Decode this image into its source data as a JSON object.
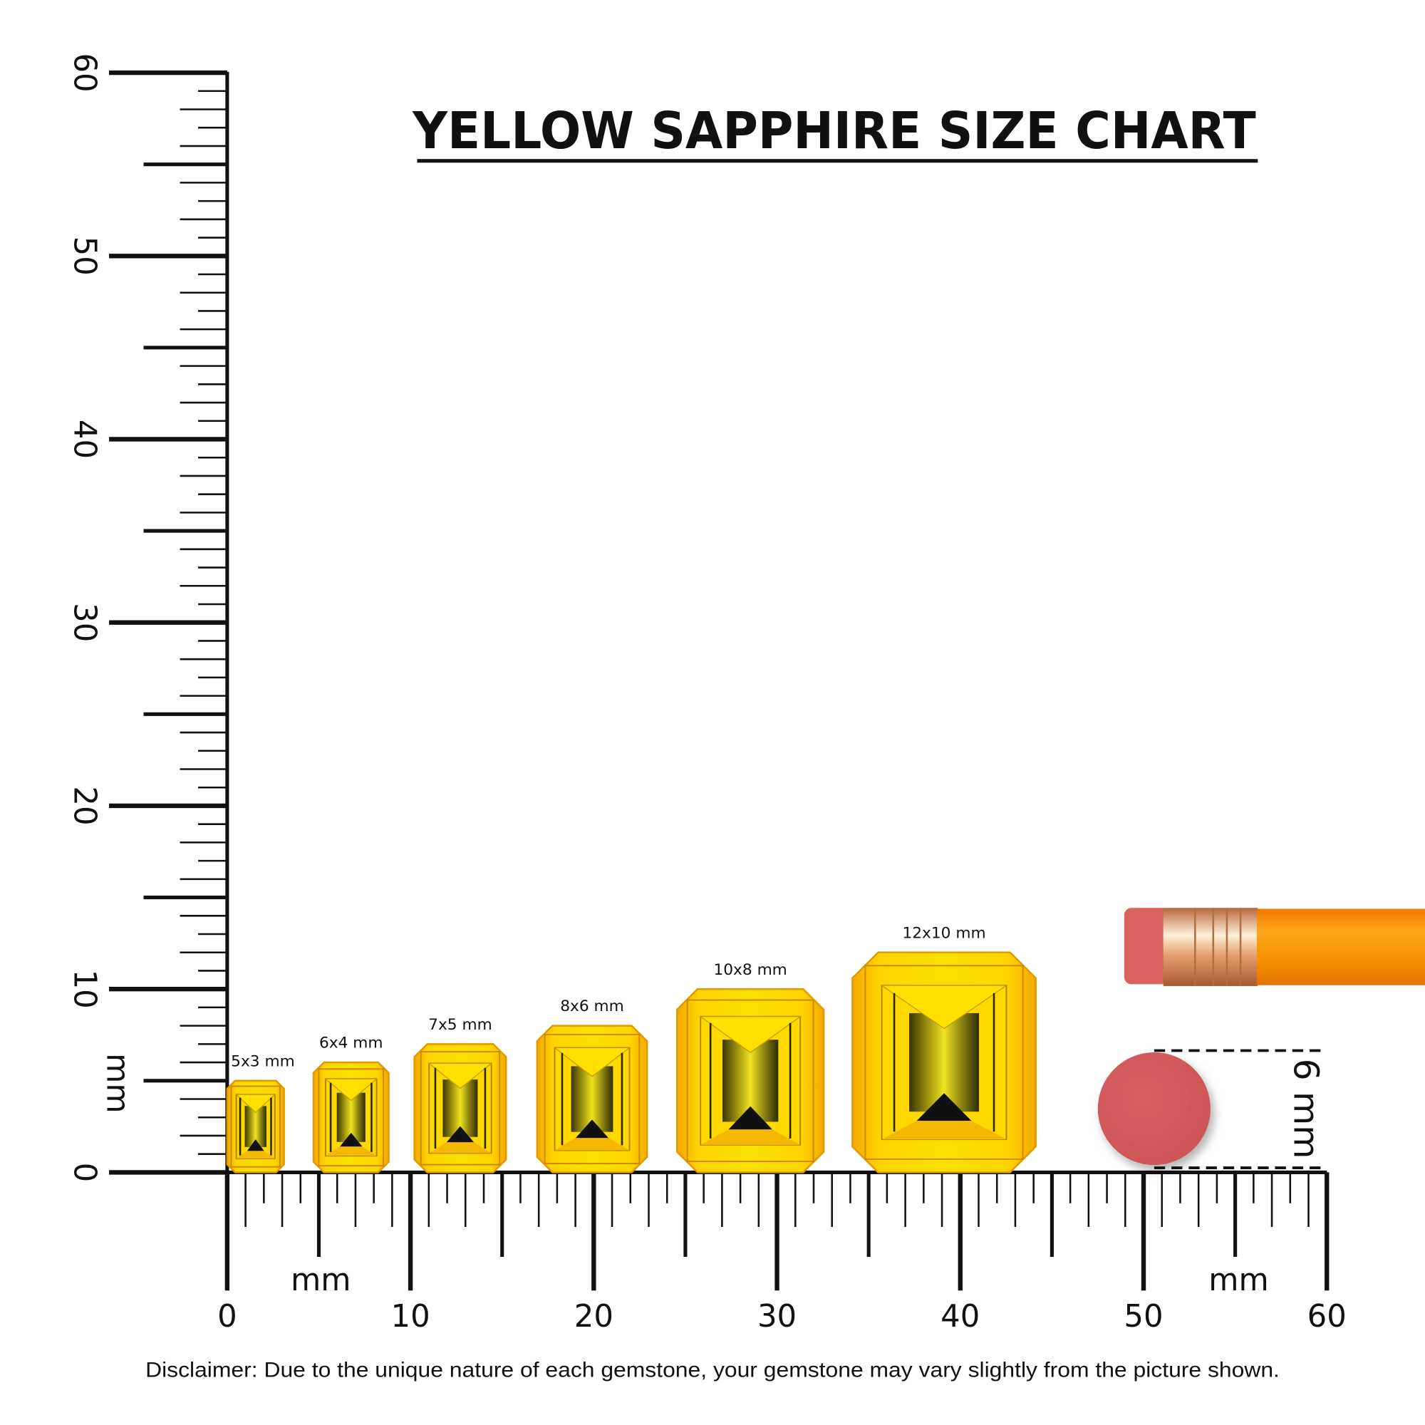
{
  "title": "YELLOW SAPPHIRE SIZE CHART",
  "disclaimer": "Disclaimer: Due to the unique nature of each gemstone, your gemstone may vary slightly from the picture shown.",
  "ruler": {
    "unit_label": "mm",
    "tick_labels": [
      "0",
      "10",
      "20",
      "30",
      "40",
      "50",
      "60"
    ]
  },
  "reference": {
    "object": "pencil eraser",
    "label": "6 mm",
    "size_mm": 6
  },
  "colors": {
    "gem_yellow": "#f7d000",
    "gem_orange": "#f0a800",
    "eraser": "#d35a5c",
    "pencil": "#f59a10",
    "ferrule": "#d9946a"
  },
  "chart_data": {
    "type": "size-chart",
    "title": "YELLOW SAPPHIRE SIZE CHART",
    "xlabel": "mm",
    "ylabel": "mm",
    "xlim": [
      0,
      60
    ],
    "ylim": [
      0,
      60
    ],
    "shape": "emerald cut",
    "gems": [
      {
        "label": "5x3 mm",
        "length_mm": 5,
        "width_mm": 3
      },
      {
        "label": "6x4 mm",
        "length_mm": 6,
        "width_mm": 4
      },
      {
        "label": "7x5 mm",
        "length_mm": 7,
        "width_mm": 5
      },
      {
        "label": "8x6 mm",
        "length_mm": 8,
        "width_mm": 6
      },
      {
        "label": "10x8 mm",
        "length_mm": 10,
        "width_mm": 8
      },
      {
        "label": "12x10 mm",
        "length_mm": 12,
        "width_mm": 10
      }
    ]
  }
}
